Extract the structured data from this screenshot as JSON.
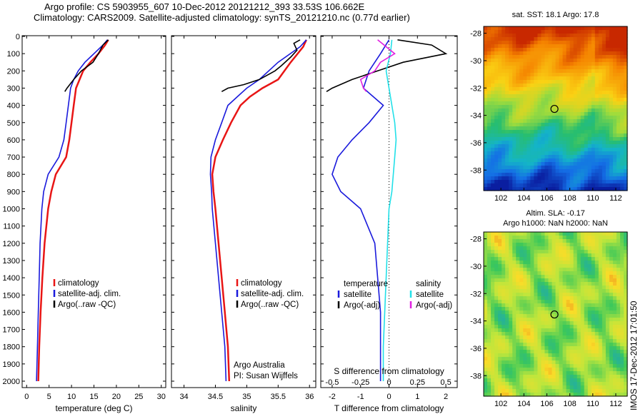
{
  "title_line1": "Argo profile: CS 5903955_607 10-Dec-2012 20121212_393 33.53S 106.662E",
  "title_line2": "Climatology: CARS2009. Satellite-adjusted climatology: synTS_20121210.nc (0.77d earlier)",
  "stamp": "IMOS 17-Dec-2012 17:01:50",
  "colors": {
    "climatology": "#e81515",
    "satellite": "#1a1adc",
    "argo": "#000000",
    "sat_salinity": "#22e0e8",
    "argo_salinity": "#e020e0"
  },
  "chart_data": [
    {
      "type": "line",
      "name": "temperature-profile",
      "xlabel": "temperature (deg C)",
      "ylim": [
        2050,
        0
      ],
      "xlim": [
        -1,
        31
      ],
      "xticks": [
        0,
        5,
        10,
        15,
        20,
        25,
        30
      ],
      "yticks": [
        0,
        100,
        200,
        300,
        400,
        500,
        600,
        700,
        800,
        900,
        1000,
        1100,
        1200,
        1300,
        1400,
        1500,
        1600,
        1700,
        1800,
        1900,
        2000
      ],
      "legend": [
        "climatology",
        "satellite-adj. clim.",
        "Argo(..raw -QC)"
      ],
      "series": [
        {
          "name": "climatology",
          "points": [
            [
              18.2,
              20
            ],
            [
              17.5,
              50
            ],
            [
              16.0,
              100
            ],
            [
              14.2,
              150
            ],
            [
              12.6,
              200
            ],
            [
              11.8,
              250
            ],
            [
              11.0,
              300
            ],
            [
              10.5,
              400
            ],
            [
              10.0,
              500
            ],
            [
              9.5,
              600
            ],
            [
              8.8,
              700
            ],
            [
              6.5,
              800
            ],
            [
              5.5,
              900
            ],
            [
              4.8,
              1000
            ],
            [
              4.0,
              1200
            ],
            [
              3.5,
              1400
            ],
            [
              3.1,
              1600
            ],
            [
              2.8,
              1800
            ],
            [
              2.6,
              2000
            ]
          ]
        },
        {
          "name": "satellite-adj. clim.",
          "points": [
            [
              18.0,
              20
            ],
            [
              17.0,
              50
            ],
            [
              15.0,
              100
            ],
            [
              13.0,
              150
            ],
            [
              11.5,
              200
            ],
            [
              10.5,
              250
            ],
            [
              9.8,
              300
            ],
            [
              9.3,
              400
            ],
            [
              8.8,
              500
            ],
            [
              8.3,
              600
            ],
            [
              7.2,
              700
            ],
            [
              4.8,
              800
            ],
            [
              3.8,
              900
            ],
            [
              3.4,
              1000
            ],
            [
              3.0,
              1200
            ],
            [
              2.8,
              1400
            ],
            [
              2.6,
              1600
            ],
            [
              2.4,
              1800
            ],
            [
              2.2,
              2000
            ]
          ]
        },
        {
          "name": "Argo(..raw -QC)",
          "points": [
            [
              18.2,
              20
            ],
            [
              17.0,
              50
            ],
            [
              16.0,
              100
            ],
            [
              14.8,
              150
            ],
            [
              12.2,
              200
            ],
            [
              10.5,
              250
            ],
            [
              9.0,
              300
            ],
            [
              8.5,
              320
            ]
          ]
        }
      ]
    },
    {
      "type": "line",
      "name": "salinity-profile",
      "xlabel": "salinity",
      "ylim": [
        2050,
        0
      ],
      "xlim": [
        33.8,
        36.1
      ],
      "xticks": [
        34,
        34.5,
        35,
        35.5,
        36
      ],
      "legend": [
        "climatology",
        "satellite-adj. clim.",
        "Argo(..raw -QC)"
      ],
      "annotation": [
        "Argo Australia",
        "PI: Susan Wijffels"
      ],
      "series": [
        {
          "name": "climatology",
          "points": [
            [
              35.95,
              20
            ],
            [
              35.9,
              60
            ],
            [
              35.7,
              150
            ],
            [
              35.5,
              250
            ],
            [
              35.25,
              300
            ],
            [
              35.05,
              350
            ],
            [
              34.9,
              400
            ],
            [
              34.75,
              500
            ],
            [
              34.62,
              600
            ],
            [
              34.5,
              700
            ],
            [
              34.45,
              800
            ],
            [
              34.47,
              900
            ],
            [
              34.5,
              1000
            ],
            [
              34.55,
              1200
            ],
            [
              34.6,
              1400
            ],
            [
              34.65,
              1600
            ],
            [
              34.7,
              1800
            ],
            [
              34.72,
              2000
            ]
          ]
        },
        {
          "name": "satellite-adj. clim.",
          "points": [
            [
              35.95,
              20
            ],
            [
              35.85,
              60
            ],
            [
              35.5,
              150
            ],
            [
              35.2,
              250
            ],
            [
              35.0,
              300
            ],
            [
              34.85,
              350
            ],
            [
              34.7,
              400
            ],
            [
              34.6,
              500
            ],
            [
              34.5,
              600
            ],
            [
              34.43,
              700
            ],
            [
              34.42,
              800
            ],
            [
              34.44,
              900
            ],
            [
              34.45,
              1000
            ],
            [
              34.5,
              1200
            ],
            [
              34.55,
              1400
            ],
            [
              34.6,
              1600
            ],
            [
              34.65,
              1800
            ],
            [
              34.67,
              2000
            ]
          ]
        },
        {
          "name": "Argo(..raw -QC)",
          "points": [
            [
              35.85,
              20
            ],
            [
              35.75,
              40
            ],
            [
              35.8,
              80
            ],
            [
              35.7,
              120
            ],
            [
              35.55,
              170
            ],
            [
              35.45,
              200
            ],
            [
              35.2,
              250
            ],
            [
              34.95,
              280
            ],
            [
              34.7,
              300
            ],
            [
              34.6,
              320
            ]
          ]
        }
      ]
    },
    {
      "type": "line",
      "name": "difference-profile",
      "xlabel": "T difference from climatology",
      "top_label": "S difference from climatology",
      "ylim": [
        2050,
        0
      ],
      "xlim": [
        -2.4,
        2.4
      ],
      "xticks": [
        -2,
        -1,
        0,
        1,
        2
      ],
      "top_ticks": [
        "-0.5",
        "-0.25",
        "0",
        "0.25",
        "0.5"
      ],
      "top_tick_positions": [
        -2,
        -1,
        0,
        1,
        2
      ],
      "legend_headers": [
        "temperature",
        "salinity"
      ],
      "legend": [
        "satellite",
        "Argo(-adj)",
        "satellite",
        "Argo(-adj)"
      ],
      "series": [
        {
          "name": "temperature satellite",
          "points": [
            [
              0.0,
              20
            ],
            [
              -0.3,
              100
            ],
            [
              -0.7,
              200
            ],
            [
              -0.9,
              300
            ],
            [
              -0.2,
              400
            ],
            [
              -0.7,
              500
            ],
            [
              -1.3,
              600
            ],
            [
              -1.8,
              700
            ],
            [
              -2.0,
              800
            ],
            [
              -1.7,
              900
            ],
            [
              -1.0,
              1000
            ],
            [
              -0.5,
              1200
            ],
            [
              -0.4,
              1400
            ],
            [
              -0.3,
              1600
            ],
            [
              -0.3,
              1800
            ],
            [
              -0.3,
              2000
            ]
          ]
        },
        {
          "name": "temperature Argo(-adj)",
          "points": [
            [
              0.3,
              20
            ],
            [
              1.5,
              50
            ],
            [
              2.0,
              100
            ],
            [
              0.5,
              150
            ],
            [
              -0.4,
              200
            ],
            [
              -1.3,
              250
            ],
            [
              -2.0,
              300
            ],
            [
              -2.2,
              320
            ]
          ]
        },
        {
          "name": "salinity satellite",
          "points": [
            [
              0.1,
              20
            ],
            [
              0.05,
              100
            ],
            [
              -0.1,
              200
            ],
            [
              0.0,
              300
            ],
            [
              0.1,
              400
            ],
            [
              0.2,
              500
            ],
            [
              0.25,
              600
            ],
            [
              0.2,
              700
            ],
            [
              0.15,
              800
            ],
            [
              0.1,
              900
            ],
            [
              0.0,
              1000
            ],
            [
              -0.05,
              1200
            ],
            [
              -0.1,
              1400
            ],
            [
              -0.15,
              1600
            ],
            [
              -0.2,
              1800
            ],
            [
              -0.2,
              2000
            ]
          ]
        },
        {
          "name": "salinity Argo(-adj)",
          "points": [
            [
              -0.4,
              20
            ],
            [
              -0.1,
              60
            ],
            [
              0.2,
              100
            ],
            [
              -0.3,
              150
            ],
            [
              -0.5,
              200
            ],
            [
              -1.0,
              250
            ],
            [
              -0.9,
              300
            ],
            [
              -0.8,
              320
            ]
          ]
        }
      ]
    },
    {
      "type": "heatmap",
      "name": "sst-map",
      "title": "sat. SST: 18.1 Argo: 17.8",
      "xlim": [
        100.5,
        113
      ],
      "ylim": [
        -39.5,
        -27.5
      ],
      "xticks": [
        102,
        104,
        106,
        108,
        110,
        112
      ],
      "yticks": [
        -28,
        -30,
        -32,
        -34,
        -36,
        -38
      ],
      "marker": [
        106.66,
        -33.53
      ]
    },
    {
      "type": "heatmap",
      "name": "sla-map",
      "title": "Altim. SLA: -0.17",
      "subtitle": "Argo h1000: NaN h2000: NaN",
      "xlim": [
        100.5,
        113
      ],
      "ylim": [
        -39.5,
        -27.5
      ],
      "xticks": [
        102,
        104,
        106,
        108,
        110,
        112
      ],
      "yticks": [
        -28,
        -30,
        -32,
        -34,
        -36,
        -38
      ],
      "marker": [
        106.66,
        -33.53
      ]
    }
  ]
}
